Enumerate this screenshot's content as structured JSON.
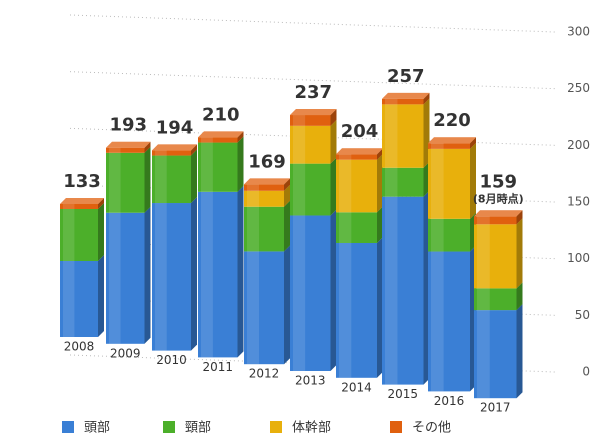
{
  "chart_data": {
    "type": "bar3d-stacked",
    "categories": [
      "2008",
      "2009",
      "2010",
      "2011",
      "2012",
      "2013",
      "2014",
      "2015",
      "2016",
      "2017"
    ],
    "series": [
      {
        "name": "頭部",
        "color": "#3a7fd5",
        "values": [
          76,
          129,
          143,
          158,
          106,
          144,
          123,
          169,
          124,
          77
        ]
      },
      {
        "name": "頸部",
        "color": "#4caf2a",
        "values": [
          52,
          59,
          46,
          47,
          42,
          48,
          28,
          26,
          29,
          19
        ]
      },
      {
        "name": "体幹部",
        "color": "#e8b00c",
        "values": [
          0,
          0,
          0,
          0,
          15,
          35,
          48,
          57,
          62,
          56
        ]
      },
      {
        "name": "その他",
        "color": "#e0600f",
        "values": [
          5,
          5,
          5,
          5,
          6,
          10,
          5,
          5,
          5,
          7
        ]
      }
    ],
    "totals": [
      133,
      193,
      194,
      210,
      169,
      237,
      204,
      257,
      220,
      159
    ],
    "annotation": "(8月時点)",
    "ylim": [
      0,
      300
    ],
    "yticks": [
      0,
      50,
      100,
      150,
      200,
      250,
      300
    ],
    "grid": true
  }
}
